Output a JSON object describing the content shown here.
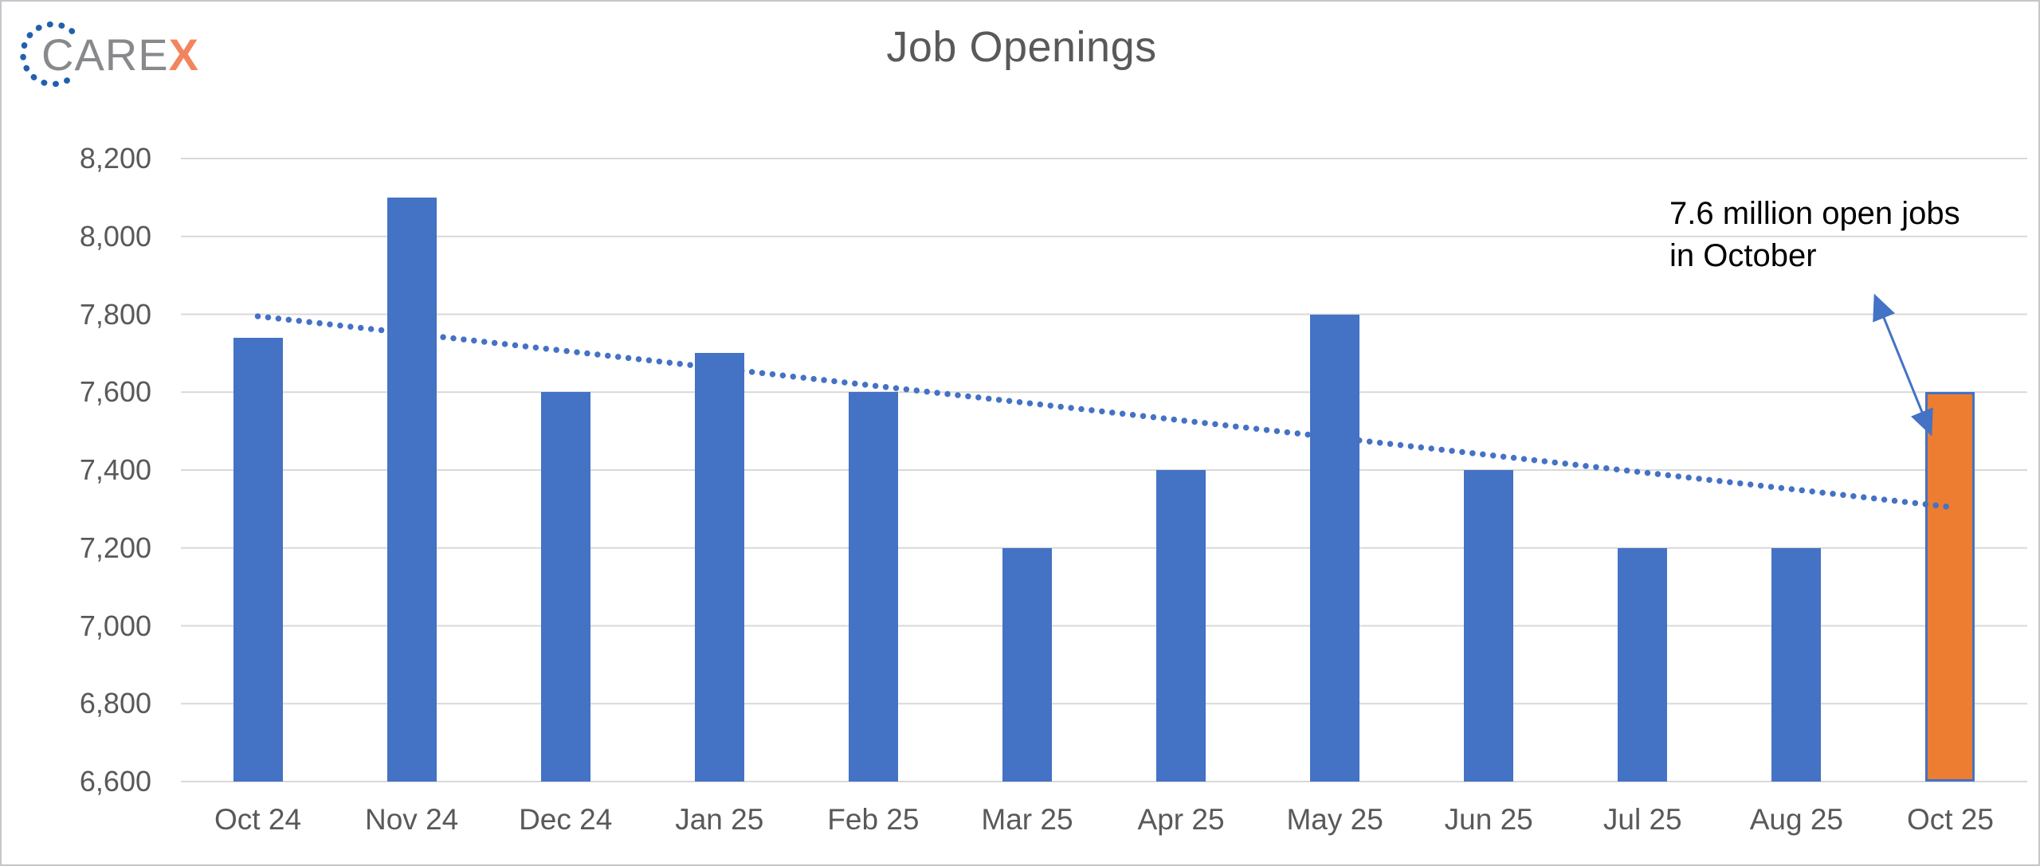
{
  "logo": {
    "care": "CARE",
    "x": "X",
    "colors": {
      "dots": "#2160AC",
      "care_text": "#87898C",
      "x_text": "#F2855D"
    }
  },
  "chart_data": {
    "type": "bar",
    "title": "Job Openings",
    "categories": [
      "Oct 24",
      "Nov 24",
      "Dec 24",
      "Jan 25",
      "Feb 25",
      "Mar 25",
      "Apr 25",
      "May 25",
      "Jun 25",
      "Jul 25",
      "Aug 25",
      "Oct 25"
    ],
    "values": [
      7740,
      8100,
      7600,
      7700,
      7600,
      7200,
      7400,
      7800,
      7400,
      7200,
      7200,
      7600
    ],
    "highlight_index": 11,
    "ylim": [
      6600,
      8200
    ],
    "yticks": [
      6600,
      6800,
      7000,
      7200,
      7400,
      7600,
      7800,
      8000,
      8200
    ],
    "ytick_labels": [
      "6,600",
      "6,800",
      "7,000",
      "7,200",
      "7,400",
      "7,600",
      "7,800",
      "8,000",
      "8,200"
    ],
    "grid": true,
    "legend_position": "none",
    "xlabel": "",
    "ylabel": "",
    "trendline": {
      "style": "dotted",
      "start_value": 7795,
      "end_value": 7305
    },
    "colors": {
      "bar": "#4472C4",
      "highlight": "#ED7D31",
      "highlight_border": "#4472C4",
      "gridline": "#D9D9D9",
      "axis_text": "#595959",
      "trendline": "#4472C4"
    }
  },
  "annotation": {
    "line1": "7.6 million open jobs",
    "line2": "in October",
    "arrow_color": "#4472C4"
  }
}
